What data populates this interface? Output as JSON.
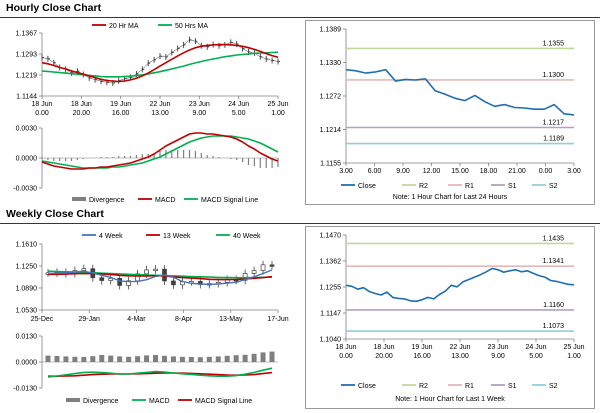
{
  "sections": {
    "hourly_title": "Hourly Close Chart",
    "weekly_title": "Weekly Close Chart"
  },
  "colors": {
    "ma_red": "#c00000",
    "ma_green": "#00b050",
    "ma_blue": "#4472c4",
    "price": "#3a3a3a",
    "line_blue": "#1f6fb0",
    "r2": "#c4d79b",
    "r1": "#e6b8b7",
    "s1": "#b1a0c7",
    "s2": "#92cddc",
    "hist": "#7f7f7f",
    "separator": "#1f3864"
  },
  "chart_data": [
    {
      "id": "hourly_price",
      "type": "line",
      "y_ticks": [
        "1.1367",
        "1.1293",
        "1.1219",
        "1.1144"
      ],
      "ylim": [
        1.1144,
        1.1367
      ],
      "x_ticks": [
        {
          "date": "18 Jun",
          "time": "0.00"
        },
        {
          "date": "18 Jun",
          "time": "20.00"
        },
        {
          "date": "19 Jun",
          "time": "16.00"
        },
        {
          "date": "22 Jun",
          "time": "13.00"
        },
        {
          "date": "23 Jun",
          "time": "9.00"
        },
        {
          "date": "24 Jun",
          "time": "5.00"
        },
        {
          "date": "25 Jun",
          "time": "1.00"
        }
      ],
      "legend": [
        "20 Hr MA",
        "50 Hrs MA"
      ],
      "series": [
        {
          "name": "Close",
          "values": [
            1.128,
            1.1276,
            1.1262,
            1.1245,
            1.1238,
            1.1226,
            1.1232,
            1.122,
            1.1208,
            1.1202,
            1.1196,
            1.1193,
            1.119,
            1.1198,
            1.1205,
            1.121,
            1.1222,
            1.1238,
            1.126,
            1.1272,
            1.1285,
            1.1282,
            1.1298,
            1.1312,
            1.1325,
            1.1343,
            1.1338,
            1.1322,
            1.1318,
            1.1326,
            1.1322,
            1.1325,
            1.1334,
            1.1328,
            1.1312,
            1.13,
            1.1296,
            1.1283,
            1.1275,
            1.127,
            1.1266
          ]
        },
        {
          "name": "20 Hr MA",
          "values": [
            1.1262,
            1.1258,
            1.1252,
            1.1245,
            1.124,
            1.1233,
            1.1227,
            1.1221,
            1.1215,
            1.1209,
            1.1203,
            1.1199,
            1.1197,
            1.1195,
            1.1197,
            1.1201,
            1.1207,
            1.1215,
            1.1225,
            1.1237,
            1.125,
            1.1262,
            1.1274,
            1.1286,
            1.1297,
            1.1307,
            1.1315,
            1.132,
            1.1323,
            1.1325,
            1.1326,
            1.1326,
            1.1325,
            1.1323,
            1.132,
            1.1315,
            1.1309,
            1.1302,
            1.1294,
            1.1287,
            1.1281
          ]
        },
        {
          "name": "50 Hrs MA",
          "values": [
            1.1232,
            1.1231,
            1.1229,
            1.1227,
            1.1225,
            1.1223,
            1.1221,
            1.1219,
            1.1217,
            1.1215,
            1.1213,
            1.1212,
            1.1212,
            1.1212,
            1.1213,
            1.1214,
            1.1216,
            1.1219,
            1.1222,
            1.1226,
            1.123,
            1.1235,
            1.124,
            1.1245,
            1.125,
            1.1256,
            1.1261,
            1.1266,
            1.1271,
            1.1275,
            1.1279,
            1.1283,
            1.1286,
            1.1289,
            1.1291,
            1.1293,
            1.1295,
            1.1296,
            1.1297,
            1.1298,
            1.1299
          ]
        }
      ]
    },
    {
      "id": "hourly_macd",
      "type": "line",
      "y_ticks": [
        "0.0030",
        "0.0000",
        "-0.0030"
      ],
      "ylim": [
        -0.003,
        0.003
      ],
      "legend": [
        "Divergence",
        "MACD",
        "MACD Signal Line"
      ],
      "series": [
        {
          "name": "MACD",
          "values": [
            -0.0004,
            -0.0006,
            -0.0008,
            -0.0009,
            -0.001,
            -0.0011,
            -0.0011,
            -0.0011,
            -0.001,
            -0.001,
            -0.0009,
            -0.0009,
            -0.0008,
            -0.0007,
            -0.0006,
            -0.0005,
            -0.0003,
            -0.0001,
            0.0001,
            0.0004,
            0.0008,
            0.0012,
            0.0015,
            0.0018,
            0.0021,
            0.0024,
            0.0025,
            0.0025,
            0.0024,
            0.0024,
            0.0023,
            0.0022,
            0.0021,
            0.0019,
            0.0016,
            0.0012,
            0.0009,
            0.0005,
            0.0002,
            -0.0001,
            -0.0003
          ]
        },
        {
          "name": "MACD Signal Line",
          "values": [
            -0.0003,
            -0.0004,
            -0.0005,
            -0.0006,
            -0.0007,
            -0.0008,
            -0.0009,
            -0.001,
            -0.001,
            -0.001,
            -0.001,
            -0.001,
            -0.0009,
            -0.0009,
            -0.0008,
            -0.0007,
            -0.0006,
            -0.0005,
            -0.0003,
            -0.0001,
            0.0001,
            0.0004,
            0.0007,
            0.001,
            0.0013,
            0.0016,
            0.0018,
            0.002,
            0.0021,
            0.0022,
            0.0022,
            0.0022,
            0.0022,
            0.0021,
            0.002,
            0.0019,
            0.0017,
            0.0015,
            0.0012,
            0.0009,
            0.0006
          ]
        },
        {
          "name": "Divergence",
          "values": [
            -0.0001,
            -0.0002,
            -0.0003,
            -0.0003,
            -0.0003,
            -0.0003,
            -0.0002,
            -0.0001,
            0,
            0,
            0.0001,
            0.0001,
            0.0001,
            0.0002,
            0.0002,
            0.0002,
            0.0003,
            0.0004,
            0.0004,
            0.0005,
            0.0007,
            0.0008,
            0.0008,
            0.0008,
            0.0008,
            0.0008,
            0.0007,
            0.0005,
            0.0003,
            0.0002,
            0.0001,
            0,
            -0.0001,
            -0.0002,
            -0.0004,
            -0.0007,
            -0.0008,
            -0.001,
            -0.001,
            -0.001,
            -0.0009
          ]
        }
      ]
    },
    {
      "id": "hourly_last24",
      "type": "line",
      "y_ticks": [
        "1.1389",
        "1.1330",
        "1.1272",
        "1.1214",
        "1.1155"
      ],
      "ylim": [
        1.1155,
        1.1389
      ],
      "x_ticks": [
        "3.00",
        "6.00",
        "9.00",
        "12.00",
        "15.00",
        "18.00",
        "21.00",
        "0.00",
        "3.00"
      ],
      "levels": [
        {
          "name": "R2",
          "value": 1.1355,
          "label": "1.1355"
        },
        {
          "name": "R1",
          "value": 1.13,
          "label": "1.1300"
        },
        {
          "name": "S1",
          "value": 1.1217,
          "label": "1.1217"
        },
        {
          "name": "S2",
          "value": 1.1189,
          "label": "1.1189"
        }
      ],
      "legend": [
        "Close",
        "R2",
        "R1",
        "S1",
        "S2"
      ],
      "note": "Note: 1 Hour Chart for Last 24 Hours",
      "series": [
        {
          "name": "Close",
          "values": [
            1.1318,
            1.1316,
            1.1312,
            1.1314,
            1.1318,
            1.1298,
            1.1301,
            1.13,
            1.1302,
            1.1281,
            1.1275,
            1.1268,
            1.1264,
            1.1273,
            1.1262,
            1.1254,
            1.1257,
            1.1252,
            1.1251,
            1.1249,
            1.1249,
            1.1257,
            1.1241,
            1.1239
          ]
        }
      ]
    },
    {
      "id": "weekly_price",
      "type": "line",
      "y_ticks": [
        "1.1610",
        "1.1250",
        "1.0890",
        "1.0530"
      ],
      "ylim": [
        1.053,
        1.161
      ],
      "x_ticks": [
        "25-Dec",
        "29-Jan",
        "4-Mar",
        "8-Apr",
        "13-May",
        "17-Jun"
      ],
      "legend": [
        "4 Week",
        "13 Week",
        "40 Week"
      ],
      "series": [
        {
          "name": "Close",
          "values": [
            1.1138,
            1.1146,
            1.1128,
            1.1176,
            1.1206,
            1.1058,
            1.1012,
            1.1048,
            1.0932,
            1.1008,
            1.1122,
            1.1186,
            1.1198,
            1.1005,
            1.0942,
            1.0992,
            1.0998,
            1.0948,
            1.0962,
            1.0982,
            1.1028,
            1.1016,
            1.1128,
            1.1175,
            1.1269,
            1.1258
          ]
        },
        {
          "name": "4 Week",
          "values": [
            1.1128,
            1.1133,
            1.1138,
            1.115,
            1.1165,
            1.1135,
            1.1098,
            1.1063,
            1.1006,
            1.0995,
            1.0998,
            1.1026,
            1.1079,
            1.1102,
            1.1067,
            1.0997,
            1.0967,
            1.0955,
            1.0951,
            1.0956,
            1.0971,
            1.0983,
            1.1028,
            1.1074,
            1.1127,
            1.1185
          ]
        },
        {
          "name": "13 Week",
          "values": [
            1.1112,
            1.1115,
            1.1118,
            1.1124,
            1.1128,
            1.1125,
            1.1118,
            1.1112,
            1.1098,
            1.109,
            1.1086,
            1.1088,
            1.1092,
            1.1086,
            1.1072,
            1.106,
            1.1052,
            1.1043,
            1.1033,
            1.1028,
            1.1028,
            1.103,
            1.1038,
            1.1048,
            1.106,
            1.1075
          ]
        },
        {
          "name": "40 Week",
          "values": [
            1.1165,
            1.116,
            1.1155,
            1.115,
            1.1145,
            1.114,
            1.1133,
            1.1126,
            1.112,
            1.1114,
            1.1108,
            1.1103,
            1.1098,
            1.1093,
            1.1088,
            1.1083,
            1.1078,
            1.1073,
            1.1068,
            1.1064,
            1.106,
            1.1058,
            1.1058,
            1.106,
            1.1064,
            1.1069
          ]
        }
      ]
    },
    {
      "id": "weekly_macd",
      "type": "line",
      "y_ticks": [
        "0.0130",
        "0.0000",
        "-0.0130"
      ],
      "ylim": [
        -0.013,
        0.013
      ],
      "legend": [
        "Divergence",
        "MACD",
        "MACD Signal Line"
      ],
      "series": [
        {
          "name": "MACD",
          "values": [
            -0.0075,
            -0.007,
            -0.0064,
            -0.0058,
            -0.0052,
            -0.0051,
            -0.0053,
            -0.0056,
            -0.006,
            -0.006,
            -0.0056,
            -0.0052,
            -0.0048,
            -0.005,
            -0.0055,
            -0.0059,
            -0.0062,
            -0.0066,
            -0.0069,
            -0.0071,
            -0.0071,
            -0.0068,
            -0.0061,
            -0.0052,
            -0.0041,
            -0.0031
          ]
        },
        {
          "name": "MACD Signal Line",
          "values": [
            -0.0071,
            -0.0071,
            -0.007,
            -0.0069,
            -0.0066,
            -0.0063,
            -0.0061,
            -0.006,
            -0.006,
            -0.006,
            -0.0059,
            -0.0058,
            -0.0056,
            -0.0055,
            -0.0055,
            -0.0056,
            -0.0057,
            -0.0059,
            -0.0061,
            -0.0063,
            -0.0065,
            -0.0066,
            -0.0065,
            -0.0063,
            -0.0058,
            -0.0053
          ]
        },
        {
          "name": "Divergence",
          "values": [
            0.0032,
            0.003,
            0.0028,
            0.0026,
            0.0025,
            0.0029,
            0.0035,
            0.0032,
            0.0028,
            0.0026,
            0.0029,
            0.0033,
            0.0035,
            0.0031,
            0.0028,
            0.0026,
            0.0025,
            0.0024,
            0.0026,
            0.0028,
            0.0031,
            0.0034,
            0.0036,
            0.0041,
            0.0048,
            0.0052
          ]
        }
      ]
    },
    {
      "id": "weekly_lastweek",
      "type": "line",
      "y_ticks": [
        "1.1470",
        "1.1362",
        "1.1255",
        "1.1147",
        "1.1040"
      ],
      "ylim": [
        1.104,
        1.147
      ],
      "x_ticks": [
        {
          "date": "18 Jun",
          "time": "0.00"
        },
        {
          "date": "18 Jun",
          "time": "20.00"
        },
        {
          "date": "19 Jun",
          "time": "16.00"
        },
        {
          "date": "22 Jun",
          "time": "13.00"
        },
        {
          "date": "23 Jun",
          "time": "9.00"
        },
        {
          "date": "24 Jun",
          "time": "5.00"
        },
        {
          "date": "25 Jun",
          "time": "1.00"
        }
      ],
      "levels": [
        {
          "name": "R2",
          "value": 1.1435,
          "label": "1.1435"
        },
        {
          "name": "R1",
          "value": 1.1341,
          "label": "1.1341"
        },
        {
          "name": "S1",
          "value": 1.116,
          "label": "1.1160"
        },
        {
          "name": "S2",
          "value": 1.1073,
          "label": "1.1073"
        }
      ],
      "legend": [
        "Close",
        "R2",
        "R1",
        "S1",
        "S2"
      ],
      "note": "Note: 1 Hour Chart for Last 1 Week",
      "series": [
        {
          "name": "Close",
          "values": [
            1.1262,
            1.1258,
            1.1246,
            1.1252,
            1.1236,
            1.1228,
            1.1222,
            1.1234,
            1.1212,
            1.1208,
            1.1206,
            1.1198,
            1.1196,
            1.1202,
            1.1212,
            1.1206,
            1.1224,
            1.1238,
            1.1262,
            1.1256,
            1.1276,
            1.1286,
            1.1296,
            1.1306,
            1.1318,
            1.1332,
            1.1326,
            1.1316,
            1.1322,
            1.1326,
            1.1318,
            1.1322,
            1.1312,
            1.1302,
            1.1296,
            1.1282,
            1.1278,
            1.1272,
            1.1266,
            1.1264
          ]
        }
      ]
    }
  ]
}
